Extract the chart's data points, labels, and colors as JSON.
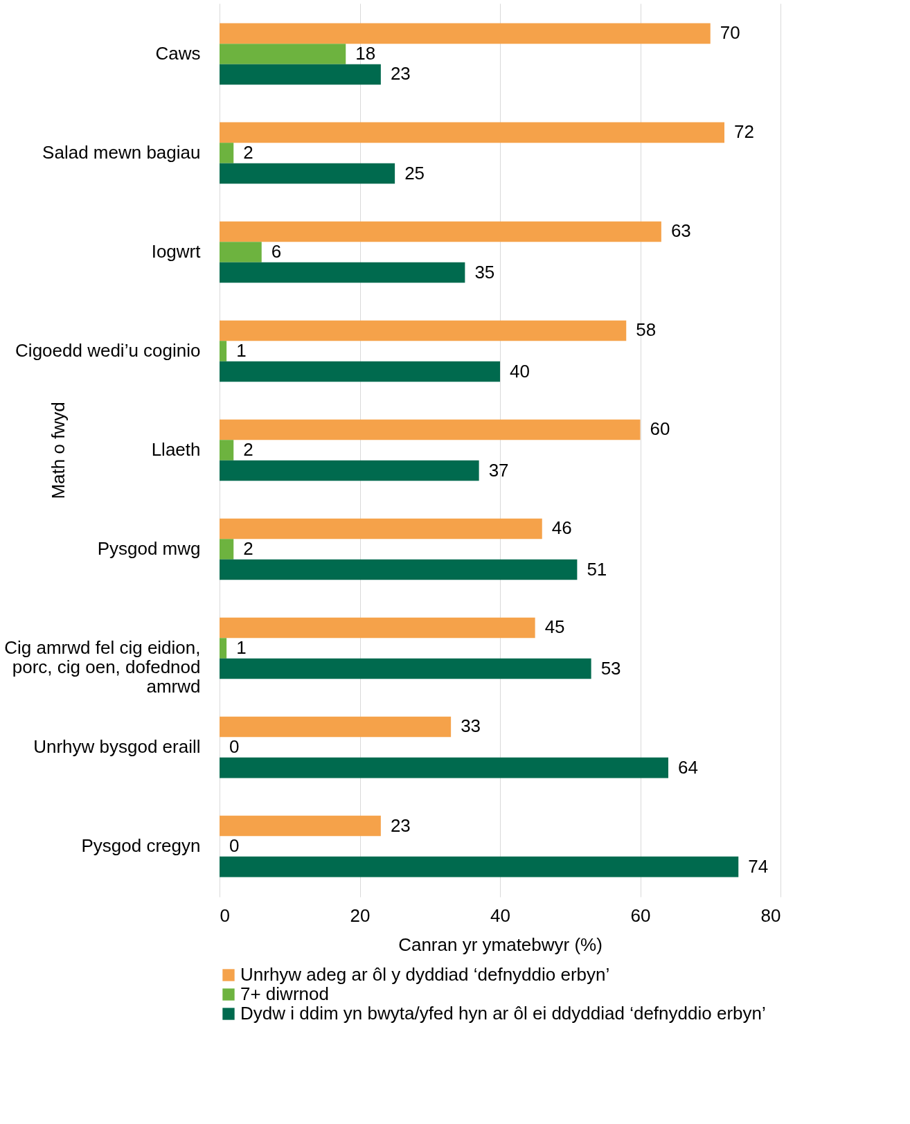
{
  "chart_data": {
    "type": "bar",
    "orientation": "horizontal",
    "xlabel": "Canran yr ymatebwyr (%)",
    "ylabel": "Math o fwyd",
    "categories": [
      "Caws",
      "Salad mewn bagiau",
      "Iogwrt",
      "Cigoedd wedi’u coginio",
      "Llaeth",
      "Pysgod mwg",
      "Cig amrwd fel cig eidion, porc, cig oen, dofednod amrwd",
      "Unrhyw bysgod eraill",
      "Pysgod cregyn"
    ],
    "series": [
      {
        "name": "Unrhyw adeg ar ôl y dyddiad ‘defnyddio erbyn’",
        "color": "#f5a24a",
        "values": [
          70,
          72,
          63,
          58,
          60,
          46,
          45,
          33,
          23
        ]
      },
      {
        "name": "7+ diwrnod",
        "color": "#6db33f",
        "values": [
          18,
          2,
          6,
          1,
          2,
          2,
          1,
          0,
          0
        ]
      },
      {
        "name": "Dydw i ddim yn bwyta/yfed hyn ar ôl ei ddyddiad ‘defnyddio erbyn’",
        "color": "#006a4e",
        "values": [
          23,
          25,
          35,
          40,
          37,
          51,
          53,
          64,
          74
        ]
      }
    ],
    "xlim": [
      0,
      80
    ],
    "xticks": [
      0,
      20,
      40,
      60,
      80
    ],
    "grid": "x",
    "legend": "bottom",
    "data_labels": true
  }
}
